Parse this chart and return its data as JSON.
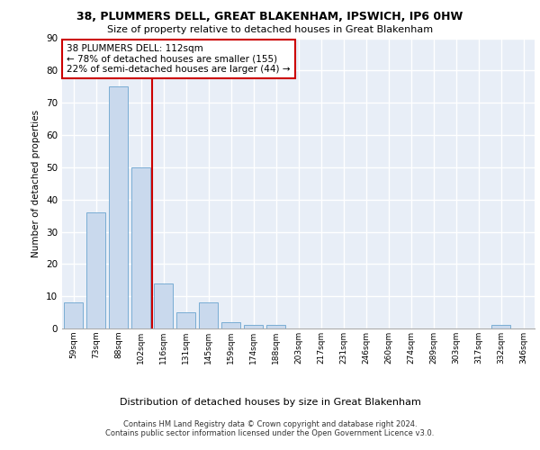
{
  "title": "38, PLUMMERS DELL, GREAT BLAKENHAM, IPSWICH, IP6 0HW",
  "subtitle": "Size of property relative to detached houses in Great Blakenham",
  "xlabel": "Distribution of detached houses by size in Great Blakenham",
  "ylabel": "Number of detached properties",
  "bins": [
    "59sqm",
    "73sqm",
    "88sqm",
    "102sqm",
    "116sqm",
    "131sqm",
    "145sqm",
    "159sqm",
    "174sqm",
    "188sqm",
    "203sqm",
    "217sqm",
    "231sqm",
    "246sqm",
    "260sqm",
    "274sqm",
    "289sqm",
    "303sqm",
    "317sqm",
    "332sqm",
    "346sqm"
  ],
  "values": [
    8,
    36,
    75,
    50,
    14,
    5,
    8,
    2,
    1,
    1,
    0,
    0,
    0,
    0,
    0,
    0,
    0,
    0,
    0,
    1,
    0
  ],
  "bar_color": "#c9d9ed",
  "bar_edge_color": "#7aadd4",
  "property_line_index": 3.5,
  "property_line_color": "#cc0000",
  "annotation_line1": "38 PLUMMERS DELL: 112sqm",
  "annotation_line2": "← 78% of detached houses are smaller (155)",
  "annotation_line3": "22% of semi-detached houses are larger (44) →",
  "annotation_box_color": "#cc0000",
  "ylim": [
    0,
    90
  ],
  "yticks": [
    0,
    10,
    20,
    30,
    40,
    50,
    60,
    70,
    80,
    90
  ],
  "background_color": "#e8eef7",
  "grid_color": "#ffffff",
  "footer_line1": "Contains HM Land Registry data © Crown copyright and database right 2024.",
  "footer_line2": "Contains public sector information licensed under the Open Government Licence v3.0."
}
